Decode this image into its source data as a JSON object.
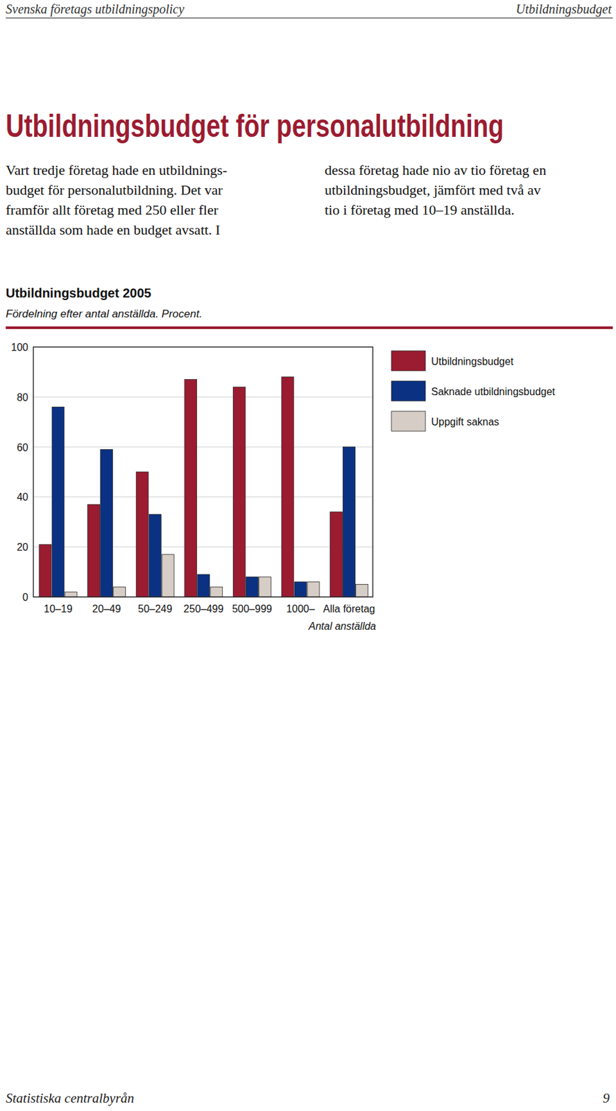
{
  "header": {
    "left": "Svenska företags utbildningspolicy",
    "right": "Utbildningsbudget"
  },
  "title": "Utbildningsbudget för personalutbildning",
  "body": {
    "columns": [
      [
        "Vart tredje företag hade en utbildnings-",
        "budget för personalutbildning. Det var",
        "framför allt företag med 250 eller fler",
        "anställda som hade en budget avsatt. I"
      ],
      [
        "dessa företag hade nio av tio företag en",
        "utbildningsbudget, jämfört med två av",
        "tio i företag med 10–19 anställda."
      ]
    ]
  },
  "chart_data": {
    "type": "bar",
    "title": "Utbildningsbudget 2005",
    "subtitle": "Fördelning efter antal anställda. Procent.",
    "x_label": "Antal anställda",
    "categories": [
      "10–19",
      "20–49",
      "50–249",
      "250–499",
      "500–999",
      "1000–",
      "Alla företag"
    ],
    "series": [
      {
        "name": "Utbildningsbudget",
        "color": "#9b1b30",
        "values": [
          21,
          37,
          50,
          87,
          84,
          88,
          34
        ]
      },
      {
        "name": "Saknade utbildningsbudget",
        "color": "#0b3183",
        "values": [
          76,
          59,
          33,
          9,
          8,
          6,
          60
        ]
      },
      {
        "name": "Uppgift saknas",
        "color": "#d6cdc6",
        "values": [
          2,
          4,
          17,
          4,
          8,
          6,
          5
        ]
      }
    ],
    "ylim": [
      0,
      100
    ],
    "yticks": [
      0,
      20,
      40,
      60,
      80,
      100
    ],
    "grid": true,
    "legend": "top-right"
  },
  "footer": {
    "left": "Statistiska centralbyrån",
    "page": 9
  }
}
